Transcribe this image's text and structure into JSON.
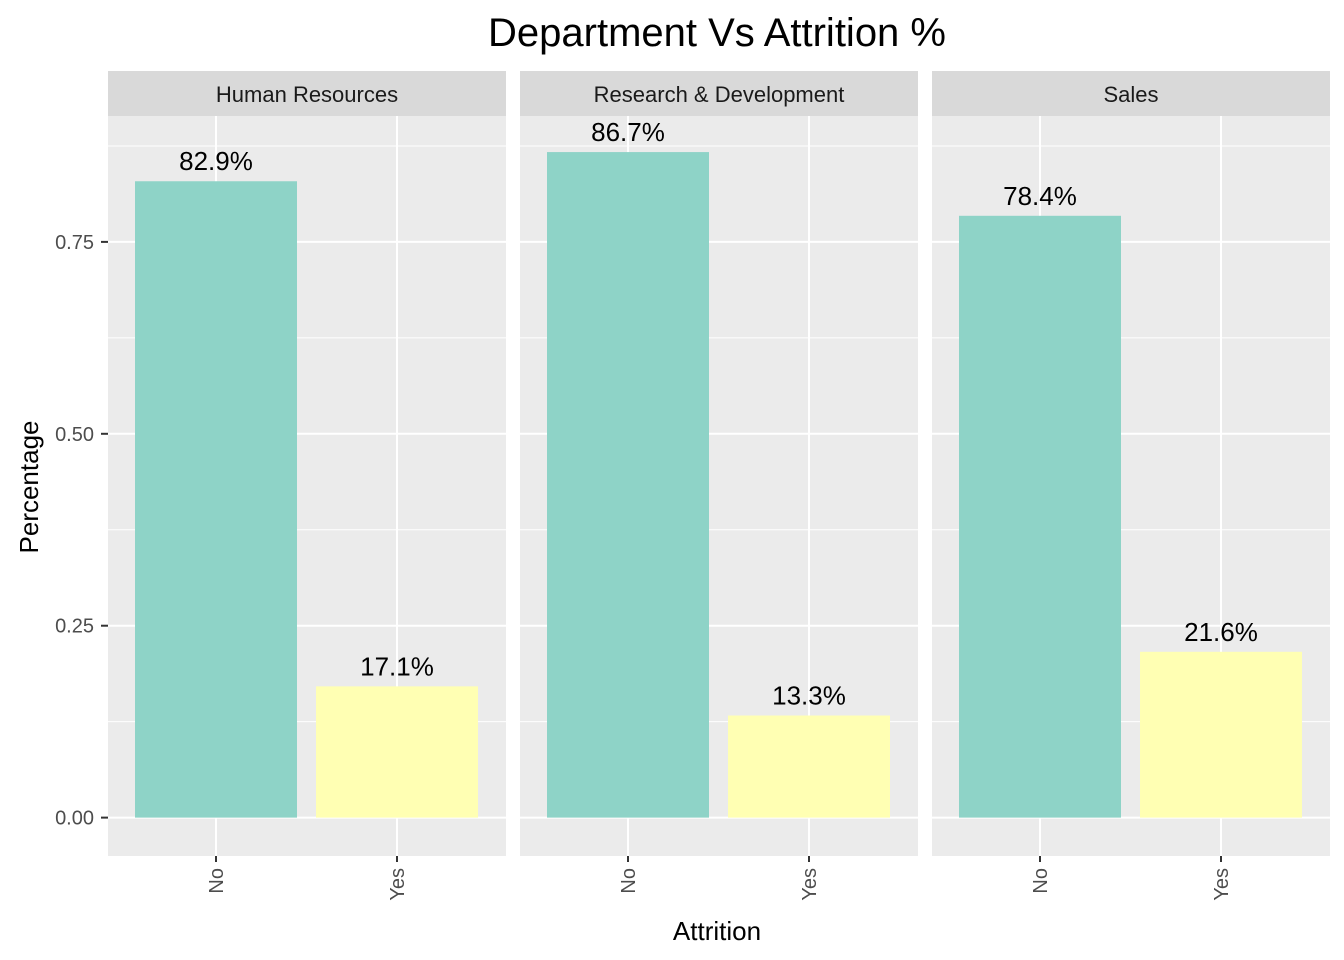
{
  "chart_data": {
    "type": "bar",
    "title": "Department Vs Attrition %",
    "xlabel": "Attrition",
    "ylabel": "Percentage",
    "categories": [
      "No",
      "Yes"
    ],
    "ylim": [
      -0.05,
      0.914
    ],
    "yticks": [
      0.0,
      0.25,
      0.5,
      0.75
    ],
    "ytick_labels": [
      "0.00",
      "0.25",
      "0.50",
      "0.75"
    ],
    "grid": true,
    "facets": [
      {
        "name": "Human Resources",
        "values": [
          0.829,
          0.171
        ],
        "labels": [
          "82.9%",
          "17.1%"
        ]
      },
      {
        "name": "Research & Development",
        "values": [
          0.867,
          0.133
        ],
        "labels": [
          "86.7%",
          "13.3%"
        ]
      },
      {
        "name": "Sales",
        "values": [
          0.784,
          0.216
        ],
        "labels": [
          "78.4%",
          "21.6%"
        ]
      }
    ],
    "colors": {
      "No": "#8ed3c7",
      "Yes": "#ffffb3",
      "panel_bg": "#ebebeb",
      "strip_bg": "#d9d9d9",
      "grid_major": "#ffffff"
    }
  }
}
